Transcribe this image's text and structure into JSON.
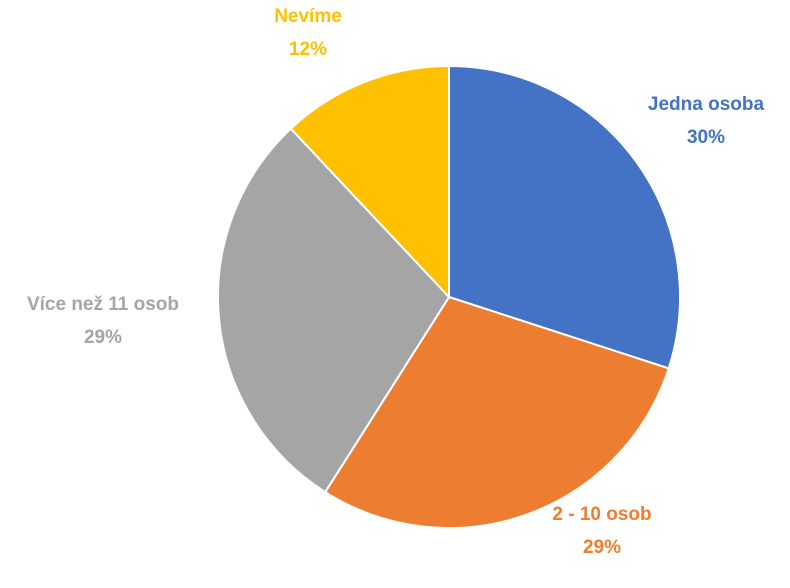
{
  "chart_data": {
    "type": "pie",
    "title": "",
    "slices": [
      {
        "label": "Jedna osoba",
        "value": 30,
        "value_label": "30%",
        "color": "#4472C4"
      },
      {
        "label": "2 - 10 osob",
        "value": 29,
        "value_label": "29%",
        "color": "#ED7D31"
      },
      {
        "label": "Více než 11 osob",
        "value": 29,
        "value_label": "29%",
        "color": "#A5A5A5"
      },
      {
        "label": "Nevíme",
        "value": 12,
        "value_label": "12%",
        "color": "#FFC000"
      }
    ],
    "legend": "none",
    "data_labels": "outside, category name and percentage"
  }
}
